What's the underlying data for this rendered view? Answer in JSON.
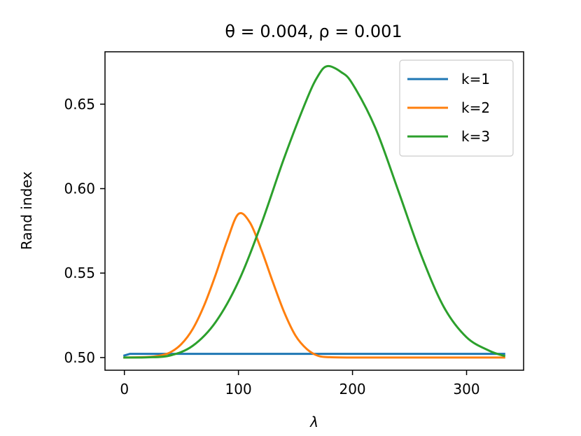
{
  "chart_data": {
    "type": "line",
    "title": "θ = 0.004, ρ = 0.001",
    "xlabel": "λ",
    "ylabel": "Rand index",
    "xlim": [
      -17,
      350
    ],
    "ylim": [
      0.4925,
      0.681
    ],
    "xticks": [
      0,
      100,
      200,
      300
    ],
    "yticks": [
      0.5,
      0.55,
      0.6,
      0.65
    ],
    "ytick_labels": [
      "0.50",
      "0.55",
      "0.60",
      "0.65"
    ],
    "grid": false,
    "legend_position": "top-right",
    "series": [
      {
        "name": "k=1",
        "color": "#1f77b4",
        "x": [
          0,
          5,
          333
        ],
        "y": [
          0.5012,
          0.5022,
          0.5022
        ]
      },
      {
        "name": "k=2",
        "color": "#ff7f0e",
        "x": [
          0,
          20,
          30,
          40,
          50,
          60,
          70,
          80,
          90,
          100,
          110,
          120,
          130,
          140,
          150,
          160,
          170,
          180,
          200,
          250,
          333
        ],
        "y": [
          0.5,
          0.5003,
          0.501,
          0.503,
          0.508,
          0.517,
          0.531,
          0.549,
          0.569,
          0.585,
          0.58,
          0.564,
          0.545,
          0.527,
          0.513,
          0.505,
          0.501,
          0.5002,
          0.5,
          0.5,
          0.5
        ]
      },
      {
        "name": "k=3",
        "color": "#2ca02c",
        "x": [
          0,
          20,
          40,
          60,
          80,
          100,
          120,
          140,
          160,
          170,
          178,
          190,
          200,
          220,
          240,
          260,
          280,
          300,
          320,
          333
        ],
        "y": [
          0.5,
          0.5001,
          0.5012,
          0.507,
          0.521,
          0.545,
          0.579,
          0.618,
          0.653,
          0.667,
          0.6725,
          0.669,
          0.662,
          0.636,
          0.599,
          0.561,
          0.53,
          0.512,
          0.504,
          0.501
        ]
      }
    ]
  }
}
